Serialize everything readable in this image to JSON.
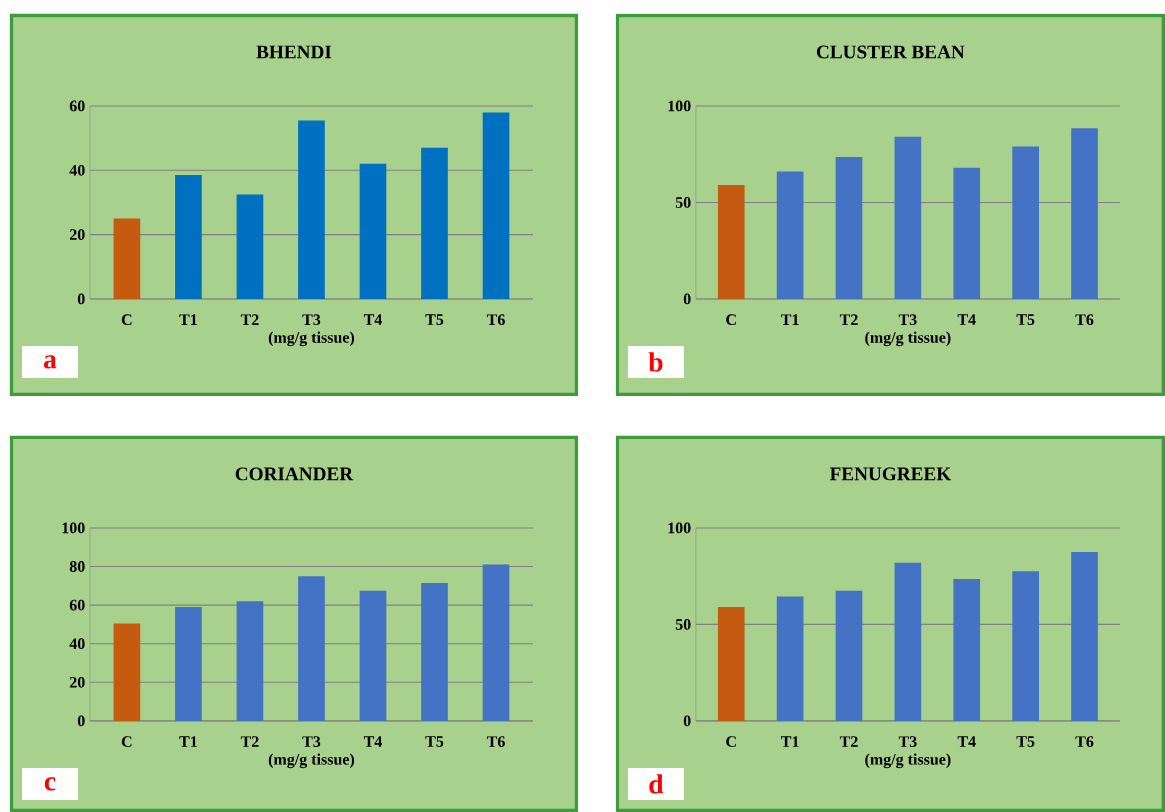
{
  "chart_data": [
    {
      "type": "bar",
      "title": "BHENDI",
      "xlabel": "(mg/g tissue)",
      "categories": [
        "C",
        "T1",
        "T2",
        "T3",
        "T4",
        "T5",
        "T6"
      ],
      "values": [
        25,
        38.5,
        32.5,
        55.5,
        42,
        47,
        58
      ],
      "colors": [
        "#c55a11",
        "#0070c0",
        "#0070c0",
        "#0070c0",
        "#0070c0",
        "#0070c0",
        "#0070c0"
      ],
      "ylim": [
        0,
        60
      ],
      "yticks": [
        0,
        20,
        40,
        60
      ],
      "grid": "y",
      "annotations": [
        "a"
      ]
    },
    {
      "type": "bar",
      "title": "CLUSTER BEAN",
      "xlabel": "(mg/g tissue)",
      "categories": [
        "C",
        "T1",
        "T2",
        "T3",
        "T4",
        "T5",
        "T6"
      ],
      "values": [
        59,
        66,
        73.5,
        84,
        68,
        79,
        88.5
      ],
      "colors": [
        "#c55a11",
        "#4472c4",
        "#4472c4",
        "#4472c4",
        "#4472c4",
        "#4472c4",
        "#4472c4"
      ],
      "ylim": [
        0,
        100
      ],
      "yticks": [
        0,
        50,
        100
      ],
      "grid": "y",
      "annotations": [
        "b"
      ]
    },
    {
      "type": "bar",
      "title": "CORIANDER",
      "xlabel": "(mg/g tissue)",
      "categories": [
        "C",
        "T1",
        "T2",
        "T3",
        "T4",
        "T5",
        "T6"
      ],
      "values": [
        50.5,
        59,
        62,
        75,
        67.5,
        71.5,
        81
      ],
      "colors": [
        "#c55a11",
        "#4472c4",
        "#4472c4",
        "#4472c4",
        "#4472c4",
        "#4472c4",
        "#4472c4"
      ],
      "ylim": [
        0,
        100
      ],
      "yticks": [
        0,
        20,
        40,
        60,
        80,
        100
      ],
      "grid": "y",
      "annotations": [
        "c"
      ]
    },
    {
      "type": "bar",
      "title": "FENUGREEK",
      "xlabel": "(mg/g tissue)",
      "categories": [
        "C",
        "T1",
        "T2",
        "T3",
        "T4",
        "T5",
        "T6"
      ],
      "values": [
        59,
        64.5,
        67.5,
        82,
        73.5,
        77.5,
        87.5
      ],
      "colors": [
        "#c55a11",
        "#4472c4",
        "#4472c4",
        "#4472c4",
        "#4472c4",
        "#4472c4",
        "#4472c4"
      ],
      "ylim": [
        0,
        100
      ],
      "yticks": [
        0,
        50,
        100
      ],
      "grid": "y",
      "annotations": [
        "d"
      ]
    }
  ]
}
